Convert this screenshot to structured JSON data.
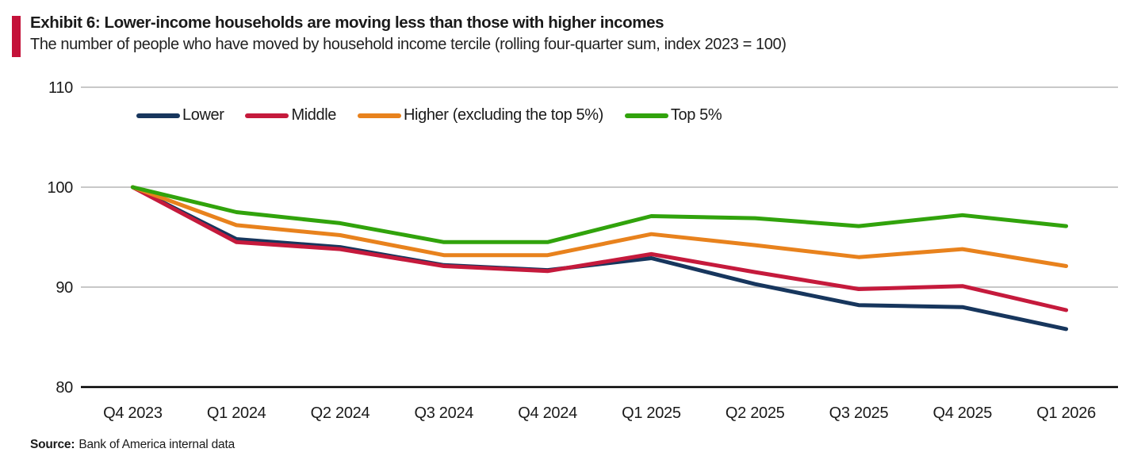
{
  "header": {
    "title": "Exhibit 6: Lower-income households are moving less than those with higher incomes",
    "subtitle": "The number of people who have moved by household income tercile (rolling four-quarter sum, index 2023 = 100)",
    "accent_color": "#c4123a"
  },
  "chart_data": {
    "type": "line",
    "categories": [
      "Q4 2023",
      "Q1 2024",
      "Q2 2024",
      "Q3 2024",
      "Q4 2024",
      "Q1 2025",
      "Q2 2025",
      "Q3 2025",
      "Q4 2025",
      "Q1 2026"
    ],
    "series": [
      {
        "name": "Lower",
        "color": "#17365d",
        "values": [
          100,
          94.8,
          94.0,
          92.2,
          91.7,
          92.9,
          90.3,
          88.2,
          88.0,
          85.8
        ]
      },
      {
        "name": "Middle",
        "color": "#c51a3c",
        "values": [
          100,
          94.5,
          93.8,
          92.1,
          91.6,
          93.3,
          91.5,
          89.8,
          90.1,
          87.7
        ]
      },
      {
        "name": "Higher (excluding the top 5%)",
        "color": "#e8821d",
        "values": [
          100,
          96.2,
          95.2,
          93.2,
          93.2,
          95.3,
          94.2,
          93.0,
          93.8,
          92.1
        ]
      },
      {
        "name": "Top 5%",
        "color": "#31a30c",
        "values": [
          100,
          97.5,
          96.4,
          94.5,
          94.5,
          97.1,
          96.9,
          96.1,
          97.2,
          96.1
        ]
      }
    ],
    "ylim": [
      80,
      110
    ],
    "yticks": [
      80,
      90,
      100,
      110
    ],
    "xlabel": "",
    "ylabel": "",
    "grid": "horizontal",
    "gridline_color": "#c8c8c8",
    "axis_line_color": "#000000",
    "tick_label_color": "#1a1a1a",
    "legend_position": "inside-top-left",
    "title": "Exhibit 6: Lower-income households are moving less than those with higher incomes"
  },
  "source": {
    "label": "Source:",
    "text": "Bank of America internal data"
  }
}
